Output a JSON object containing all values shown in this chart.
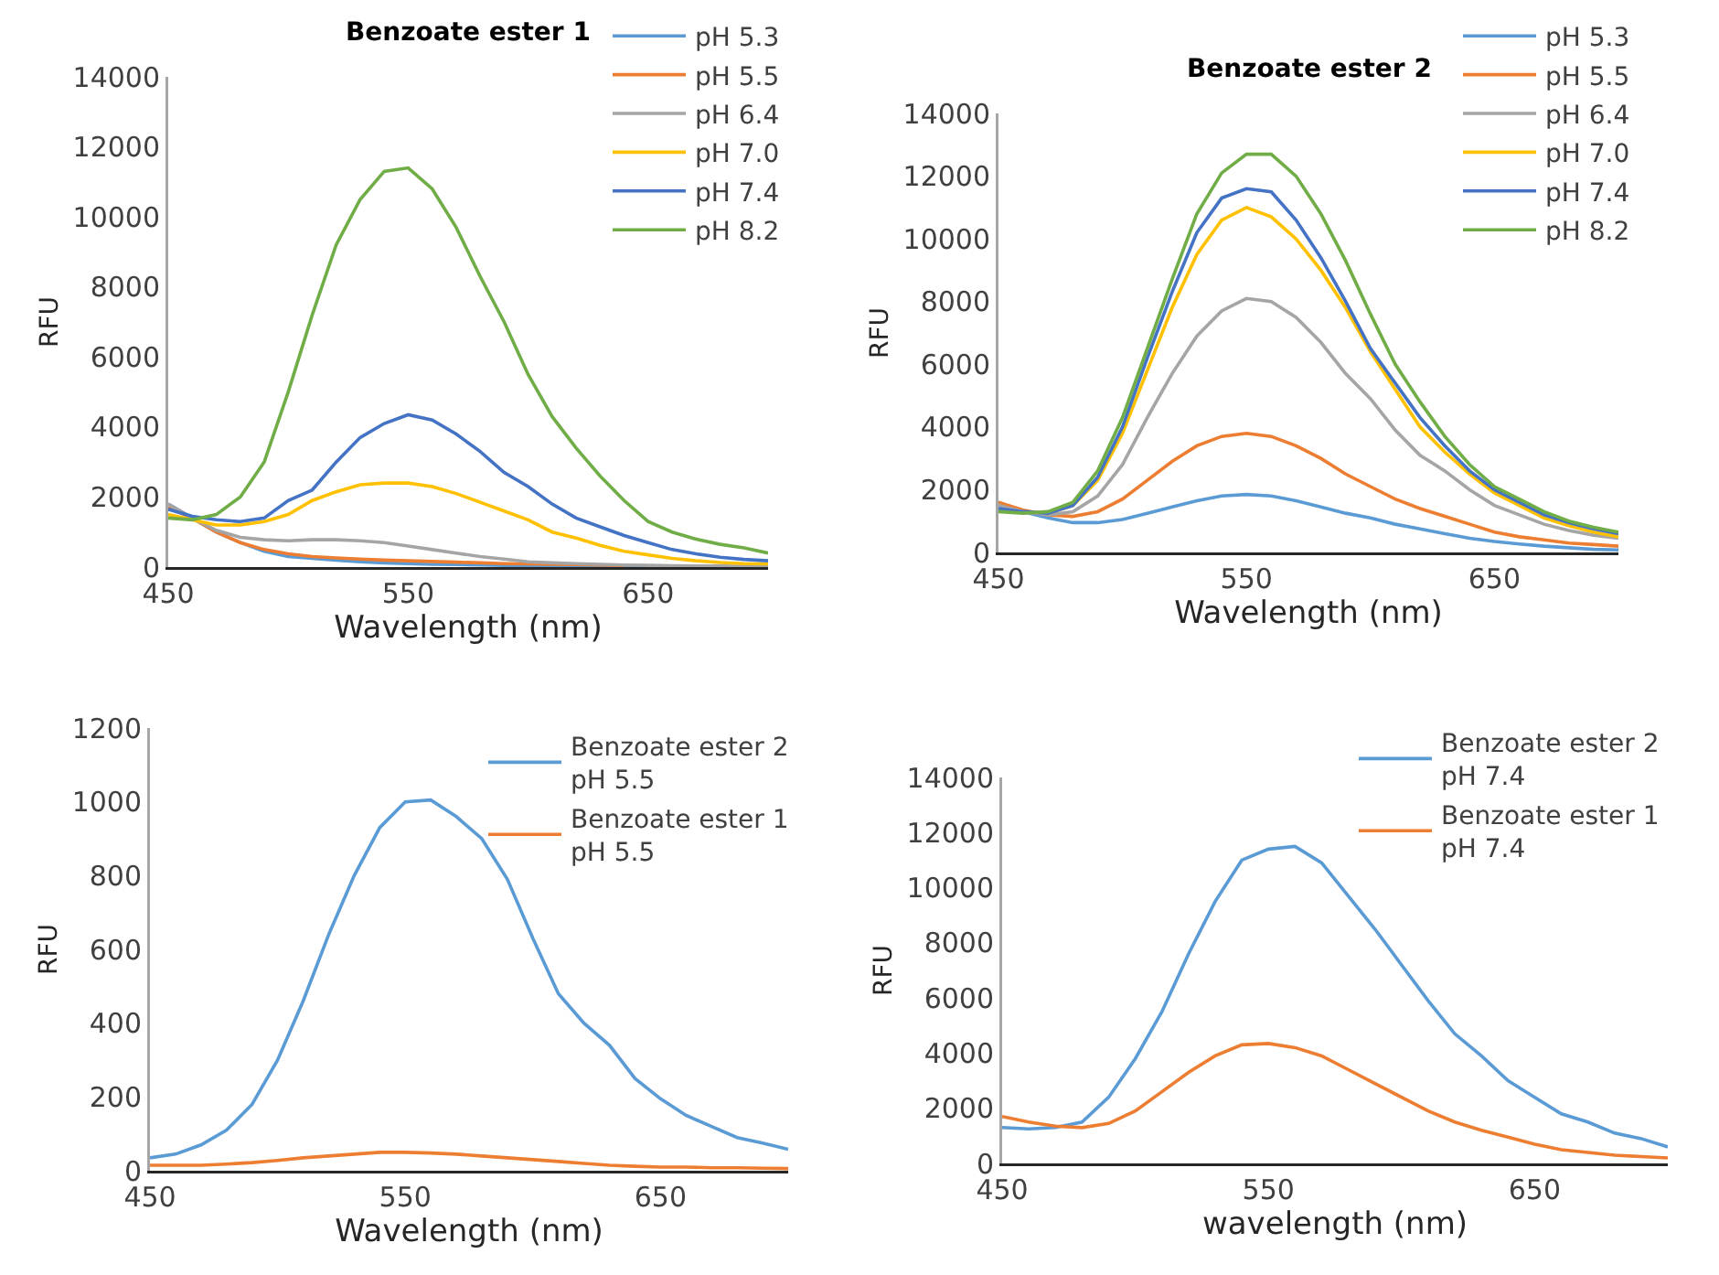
{
  "chart_data": [
    {
      "type": "line",
      "title": "Benzoate ester 1",
      "xlabel": "Wavelength (nm)",
      "ylabel": "RFU",
      "legend": "top right",
      "x": [
        450,
        460,
        470,
        480,
        490,
        500,
        510,
        520,
        530,
        540,
        550,
        560,
        570,
        580,
        590,
        600,
        610,
        620,
        630,
        640,
        650,
        660,
        670,
        680,
        690,
        700
      ],
      "xlim": [
        450,
        700
      ],
      "xticks": [
        450,
        550,
        650
      ],
      "ylim": [
        0,
        14000
      ],
      "yticks": [
        0,
        2000,
        4000,
        6000,
        8000,
        10000,
        12000,
        14000
      ],
      "series": [
        {
          "name": "pH 5.3",
          "color": "#5b9bd5",
          "values": [
            1800,
            1400,
            1000,
            700,
            450,
            300,
            250,
            200,
            150,
            120,
            100,
            80,
            70,
            60,
            50,
            40,
            30,
            30,
            20,
            20,
            20,
            10,
            10,
            10,
            10,
            10
          ]
        },
        {
          "name": "pH 5.5",
          "color": "#ed7d31",
          "values": [
            1700,
            1400,
            1000,
            700,
            500,
            380,
            300,
            260,
            230,
            200,
            180,
            160,
            140,
            120,
            100,
            90,
            80,
            70,
            60,
            50,
            null,
            null,
            null,
            null,
            null,
            null
          ]
        },
        {
          "name": "pH 6.4",
          "color": "#a5a5a5",
          "values": [
            1800,
            1400,
            1050,
            850,
            780,
            750,
            780,
            780,
            750,
            700,
            600,
            500,
            400,
            300,
            230,
            150,
            120,
            100,
            80,
            60,
            50,
            40,
            30,
            30,
            20,
            20
          ]
        },
        {
          "name": "pH 7.0",
          "color": "#ffc000",
          "values": [
            1500,
            1350,
            1200,
            1200,
            1300,
            1500,
            1900,
            2150,
            2350,
            2400,
            2400,
            2300,
            2100,
            1850,
            1600,
            1350,
            1000,
            830,
            620,
            450,
            350,
            250,
            180,
            130,
            100,
            90
          ]
        },
        {
          "name": "pH 7.4",
          "color": "#4472c4",
          "values": [
            1650,
            1450,
            1350,
            1300,
            1400,
            1900,
            2200,
            3000,
            3700,
            4100,
            4350,
            4200,
            3800,
            3300,
            2700,
            2300,
            1800,
            1400,
            1150,
            900,
            700,
            500,
            380,
            280,
            220,
            180
          ]
        },
        {
          "name": "pH 8.2",
          "color": "#70ad47",
          "values": [
            1400,
            1350,
            1500,
            2000,
            3000,
            5000,
            7200,
            9200,
            10500,
            11300,
            11400,
            10800,
            9700,
            8300,
            7000,
            5500,
            4300,
            3400,
            2600,
            1900,
            1300,
            1000,
            800,
            650,
            550,
            400
          ]
        }
      ]
    },
    {
      "type": "line",
      "title": "Benzoate ester 2",
      "xlabel": "Wavelength (nm)",
      "ylabel": "RFU",
      "legend": "top right",
      "x": [
        450,
        460,
        470,
        480,
        490,
        500,
        510,
        520,
        530,
        540,
        550,
        560,
        570,
        580,
        590,
        600,
        610,
        620,
        630,
        640,
        650,
        660,
        670,
        680,
        690,
        700
      ],
      "xlim": [
        450,
        700
      ],
      "xticks": [
        450,
        550,
        650
      ],
      "ylim": [
        0,
        14000
      ],
      "yticks": [
        0,
        2000,
        4000,
        6000,
        8000,
        10000,
        12000,
        14000
      ],
      "series": [
        {
          "name": "pH 5.3",
          "color": "#5b9bd5",
          "values": [
            1600,
            1300,
            1100,
            950,
            950,
            1050,
            1250,
            1450,
            1650,
            1800,
            1850,
            1800,
            1650,
            1450,
            1250,
            1100,
            900,
            750,
            600,
            450,
            350,
            270,
            200,
            150,
            100,
            80
          ]
        },
        {
          "name": "pH 5.5",
          "color": "#ed7d31",
          "values": [
            1600,
            1350,
            1200,
            1150,
            1300,
            1700,
            2300,
            2900,
            3400,
            3700,
            3800,
            3700,
            3400,
            3000,
            2500,
            2100,
            1700,
            1400,
            1150,
            900,
            650,
            500,
            400,
            300,
            250,
            200
          ]
        },
        {
          "name": "pH 6.4",
          "color": "#a5a5a5",
          "values": [
            1500,
            1300,
            1200,
            1300,
            1800,
            2800,
            4300,
            5700,
            6900,
            7700,
            8100,
            8000,
            7500,
            6700,
            5700,
            4900,
            3900,
            3100,
            2600,
            2000,
            1500,
            1200,
            900,
            700,
            550,
            450
          ]
        },
        {
          "name": "pH 7.0",
          "color": "#ffc000",
          "values": [
            null,
            null,
            1250,
            1500,
            2300,
            3800,
            5800,
            7800,
            9500,
            10600,
            11000,
            10700,
            10000,
            9000,
            7800,
            6400,
            5200,
            4000,
            3200,
            2500,
            1900,
            1500,
            1100,
            850,
            650,
            500
          ]
        },
        {
          "name": "pH 7.4",
          "color": "#4472c4",
          "values": [
            1400,
            1300,
            1250,
            1500,
            2400,
            4000,
            6200,
            8300,
            10200,
            11300,
            11600,
            11500,
            10600,
            9400,
            8000,
            6500,
            5400,
            4300,
            3400,
            2600,
            2000,
            1600,
            1200,
            950,
            750,
            600
          ]
        },
        {
          "name": "pH 8.2",
          "color": "#70ad47",
          "values": [
            1300,
            1250,
            1300,
            1600,
            2600,
            4300,
            6500,
            8700,
            10800,
            12100,
            12700,
            12700,
            12000,
            10800,
            9300,
            7600,
            6000,
            4800,
            3700,
            2800,
            2100,
            1700,
            1300,
            1000,
            800,
            650
          ]
        }
      ]
    },
    {
      "type": "line",
      "xlabel": "Wavelength (nm)",
      "ylabel": "RFU",
      "legend": "top right",
      "x": [
        450,
        460,
        470,
        480,
        490,
        500,
        510,
        520,
        530,
        540,
        550,
        560,
        570,
        580,
        590,
        600,
        610,
        620,
        630,
        640,
        650,
        660,
        670,
        680,
        690,
        700
      ],
      "xlim": [
        450,
        700
      ],
      "xticks": [
        450,
        550,
        650
      ],
      "ylim": [
        0,
        1200
      ],
      "yticks": [
        0,
        200,
        400,
        600,
        800,
        1000,
        1200
      ],
      "series": [
        {
          "name": "Benzoate ester 2\npH 5.5",
          "color": "#5b9bd5",
          "values": [
            35,
            45,
            70,
            110,
            180,
            300,
            460,
            640,
            800,
            930,
            1000,
            1005,
            960,
            900,
            790,
            630,
            480,
            400,
            340,
            250,
            195,
            150,
            120,
            90,
            75,
            58
          ]
        },
        {
          "name": "Benzoate ester 1\npH 5.5",
          "color": "#ed7d31",
          "values": [
            15,
            15,
            15,
            18,
            22,
            28,
            35,
            40,
            45,
            50,
            50,
            48,
            45,
            40,
            35,
            30,
            25,
            20,
            15,
            12,
            10,
            10,
            8,
            8,
            7,
            6
          ]
        }
      ]
    },
    {
      "type": "line",
      "xlabel": "wavelength (nm)",
      "ylabel": "RFU",
      "legend": "top right",
      "x": [
        450,
        460,
        470,
        480,
        490,
        500,
        510,
        520,
        530,
        540,
        550,
        560,
        570,
        580,
        590,
        600,
        610,
        620,
        630,
        640,
        650,
        660,
        670,
        680,
        690,
        700
      ],
      "xlim": [
        450,
        700
      ],
      "xticks": [
        450,
        550,
        650
      ],
      "ylim": [
        0,
        14000
      ],
      "yticks": [
        0,
        2000,
        4000,
        6000,
        8000,
        10000,
        12000,
        14000
      ],
      "series": [
        {
          "name": "Benzoate ester 2\npH 7.4",
          "color": "#5b9bd5",
          "values": [
            1300,
            1250,
            1300,
            1500,
            2400,
            3800,
            5500,
            7600,
            9500,
            11000,
            11400,
            11500,
            10900,
            9700,
            8500,
            7200,
            5900,
            4700,
            3900,
            3000,
            2400,
            1800,
            1500,
            1100,
            900,
            600
          ]
        },
        {
          "name": "Benzoate ester 1\npH 7.4",
          "color": "#ed7d31",
          "values": [
            1700,
            1500,
            1350,
            1300,
            1450,
            1900,
            2600,
            3300,
            3900,
            4300,
            4350,
            4200,
            3900,
            3400,
            2900,
            2400,
            1900,
            1500,
            1200,
            950,
            700,
            500,
            400,
            300,
            250,
            200
          ]
        }
      ]
    }
  ]
}
